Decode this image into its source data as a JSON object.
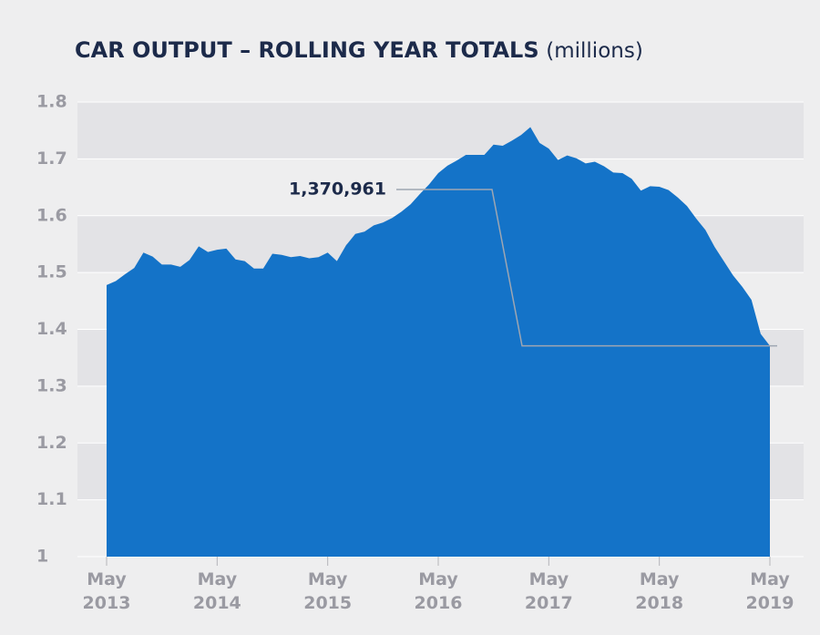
{
  "chart_data": {
    "type": "area",
    "title": "CAR OUTPUT – ROLLING YEAR TOTALS",
    "units": "(millions)",
    "categories": [
      "May 2013",
      null,
      null,
      null,
      null,
      null,
      null,
      null,
      null,
      null,
      null,
      null,
      "May 2014",
      null,
      null,
      null,
      null,
      null,
      null,
      null,
      null,
      null,
      null,
      null,
      "May 2015",
      null,
      null,
      null,
      null,
      null,
      null,
      null,
      null,
      null,
      null,
      null,
      "May 2016",
      null,
      null,
      null,
      null,
      null,
      null,
      null,
      null,
      null,
      null,
      null,
      "May 2017",
      null,
      null,
      null,
      null,
      null,
      null,
      null,
      null,
      null,
      null,
      null,
      "May 2018",
      null,
      null,
      null,
      null,
      null,
      null,
      null,
      null,
      null,
      null,
      null,
      "May 2019"
    ],
    "values": [
      1.478,
      1.485,
      1.497,
      1.508,
      1.535,
      1.528,
      1.514,
      1.514,
      1.51,
      1.522,
      1.546,
      1.536,
      1.54,
      1.542,
      1.523,
      1.52,
      1.507,
      1.507,
      1.533,
      1.531,
      1.527,
      1.529,
      1.525,
      1.527,
      1.535,
      1.52,
      1.548,
      1.568,
      1.572,
      1.583,
      1.588,
      1.596,
      1.607,
      1.62,
      1.638,
      1.655,
      1.675,
      1.688,
      1.697,
      1.707,
      1.707,
      1.707,
      1.725,
      1.723,
      1.732,
      1.742,
      1.756,
      1.728,
      1.718,
      1.698,
      1.706,
      1.701,
      1.692,
      1.695,
      1.687,
      1.676,
      1.675,
      1.665,
      1.644,
      1.652,
      1.651,
      1.645,
      1.632,
      1.617,
      1.595,
      1.575,
      1.545,
      1.52,
      1.495,
      1.475,
      1.452,
      1.392,
      1.371
    ],
    "color": "#1473c8",
    "ylim": [
      1,
      1.8
    ],
    "yticks": [
      1,
      1.1,
      1.2,
      1.3,
      1.4,
      1.5,
      1.6,
      1.7,
      1.8
    ],
    "grid": true,
    "annotation": {
      "value": 1.370961,
      "label": "1,370,961"
    }
  }
}
